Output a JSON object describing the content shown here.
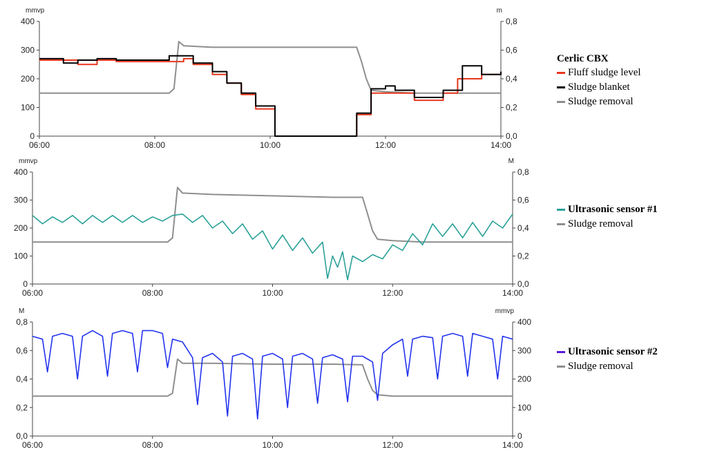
{
  "colors": {
    "fluff": "#e8361c",
    "blanket": "#000000",
    "removal": "#8e8e8e",
    "us1": "#2aa198",
    "us2": "#2233ee",
    "us2_legend": "#5a18d8"
  },
  "chart_data": [
    {
      "type": "line",
      "title": "",
      "xlim": [
        "06:00",
        "14:00"
      ],
      "x_ticks": [
        "06:00",
        "08:00",
        "10:00",
        "12:00",
        "14:00"
      ],
      "left_axis": {
        "unit": "mmvp",
        "lim": [
          0,
          400
        ],
        "ticks": [
          "0",
          "100",
          "200",
          "300",
          "400"
        ]
      },
      "right_axis": {
        "unit": "m",
        "lim": [
          0,
          0.8
        ],
        "ticks": [
          "0,0",
          "0,2",
          "0,4",
          "0,6",
          "0,8"
        ]
      },
      "legend": {
        "title": "Cerlic CBX",
        "items": [
          "Fluff sludge level",
          "Sludge blanket",
          "Sludge removal"
        ]
      },
      "series": [
        {
          "name": "Fluff sludge level",
          "axis": "left",
          "color_key": "fluff",
          "x": [
            "06:00",
            "06:15",
            "06:40",
            "07:00",
            "07:20",
            "07:40",
            "08:10",
            "08:30",
            "08:40",
            "09:00",
            "09:15",
            "09:30",
            "09:45",
            "10:00",
            "10:05",
            "10:30",
            "11:00",
            "11:25",
            "11:30",
            "11:45",
            "12:00",
            "12:30",
            "12:50",
            "13:00",
            "13:10",
            "13:15",
            "13:20",
            "13:40",
            "14:00"
          ],
          "y": [
            265,
            265,
            250,
            265,
            260,
            260,
            260,
            270,
            250,
            215,
            185,
            145,
            95,
            95,
            0,
            0,
            0,
            0,
            75,
            150,
            150,
            125,
            125,
            150,
            150,
            200,
            200,
            215,
            220
          ]
        },
        {
          "name": "Sludge blanket",
          "axis": "left",
          "color_key": "blanket",
          "x": [
            "06:00",
            "06:25",
            "06:40",
            "07:00",
            "07:20",
            "07:40",
            "08:15",
            "08:30",
            "08:40",
            "09:00",
            "09:15",
            "09:30",
            "09:45",
            "10:00",
            "10:05",
            "10:30",
            "11:00",
            "11:25",
            "11:30",
            "11:45",
            "12:00",
            "12:10",
            "12:30",
            "12:50",
            "13:00",
            "13:10",
            "13:20",
            "13:40",
            "14:00"
          ],
          "y": [
            270,
            255,
            265,
            270,
            265,
            265,
            280,
            280,
            255,
            225,
            185,
            150,
            105,
            105,
            0,
            0,
            0,
            0,
            80,
            165,
            175,
            160,
            135,
            135,
            160,
            160,
            245,
            215,
            225
          ]
        },
        {
          "name": "Sludge removal",
          "axis": "right",
          "color_key": "removal",
          "x": [
            "06:00",
            "08:15",
            "08:20",
            "08:25",
            "08:30",
            "09:00",
            "10:00",
            "11:00",
            "11:30",
            "11:35",
            "11:40",
            "11:45",
            "12:00",
            "12:30",
            "13:00",
            "14:00"
          ],
          "y": [
            0.3,
            0.3,
            0.33,
            0.66,
            0.63,
            0.62,
            0.62,
            0.62,
            0.62,
            0.52,
            0.4,
            0.32,
            0.31,
            0.3,
            0.3,
            0.3
          ]
        }
      ]
    },
    {
      "type": "line",
      "title": "",
      "xlim": [
        "06:00",
        "14:00"
      ],
      "x_ticks": [
        "06:00",
        "08:00",
        "10:00",
        "12:00",
        "14:00"
      ],
      "left_axis": {
        "unit": "mmvp",
        "lim": [
          0,
          400
        ],
        "ticks": [
          "0",
          "100",
          "200",
          "300",
          "400"
        ]
      },
      "right_axis": {
        "unit": "M",
        "lim": [
          0,
          0.8
        ],
        "ticks": [
          "0,0",
          "0,2",
          "0,4",
          "0,6",
          "0,8"
        ]
      },
      "legend": {
        "items": [
          "Ultrasonic sensor #1",
          "Sludge removal"
        ]
      },
      "series": [
        {
          "name": "Ultrasonic sensor #1",
          "axis": "left",
          "color_key": "us1",
          "x": [
            "06:00",
            "06:10",
            "06:20",
            "06:30",
            "06:40",
            "06:50",
            "07:00",
            "07:10",
            "07:20",
            "07:30",
            "07:40",
            "07:50",
            "08:00",
            "08:10",
            "08:20",
            "08:30",
            "08:40",
            "08:50",
            "09:00",
            "09:10",
            "09:20",
            "09:30",
            "09:40",
            "09:50",
            "10:00",
            "10:10",
            "10:20",
            "10:30",
            "10:40",
            "10:50",
            "10:55",
            "11:00",
            "11:05",
            "11:10",
            "11:15",
            "11:20",
            "11:30",
            "11:40",
            "11:50",
            "12:00",
            "12:10",
            "12:20",
            "12:30",
            "12:40",
            "12:50",
            "13:00",
            "13:10",
            "13:20",
            "13:30",
            "13:40",
            "13:50",
            "14:00"
          ],
          "y": [
            245,
            215,
            240,
            220,
            245,
            215,
            245,
            220,
            245,
            220,
            245,
            220,
            240,
            225,
            245,
            250,
            220,
            245,
            200,
            225,
            180,
            215,
            160,
            190,
            125,
            175,
            120,
            165,
            110,
            150,
            20,
            100,
            60,
            115,
            15,
            100,
            80,
            105,
            90,
            140,
            120,
            180,
            140,
            215,
            170,
            215,
            165,
            220,
            170,
            225,
            200,
            250
          ]
        },
        {
          "name": "Sludge removal",
          "axis": "right",
          "color_key": "removal",
          "x": [
            "06:00",
            "08:15",
            "08:20",
            "08:25",
            "08:30",
            "09:00",
            "10:00",
            "11:00",
            "11:30",
            "11:35",
            "11:40",
            "11:45",
            "12:00",
            "12:30",
            "13:00",
            "14:00"
          ],
          "y": [
            0.3,
            0.3,
            0.33,
            0.69,
            0.65,
            0.64,
            0.63,
            0.62,
            0.62,
            0.5,
            0.38,
            0.32,
            0.31,
            0.3,
            0.3,
            0.3
          ]
        }
      ]
    },
    {
      "type": "line",
      "title": "",
      "xlim": [
        "06:00",
        "14:00"
      ],
      "x_ticks": [
        "06:00",
        "08:00",
        "10:00",
        "12:00",
        "14:00"
      ],
      "left_axis": {
        "unit": "M",
        "lim": [
          0,
          0.8
        ],
        "ticks": [
          "0,0",
          "0,2",
          "0,4",
          "0,6",
          "0,8"
        ]
      },
      "right_axis": {
        "unit": "mmvp",
        "lim": [
          0,
          400
        ],
        "ticks": [
          "0",
          "100",
          "200",
          "300",
          "400"
        ]
      },
      "legend": {
        "items": [
          "Ultrasonic sensor #2",
          "Sludge removal"
        ]
      },
      "series": [
        {
          "name": "Ultrasonic sensor #2",
          "axis": "left",
          "color_key": "us2",
          "x": [
            "06:00",
            "06:10",
            "06:15",
            "06:20",
            "06:30",
            "06:40",
            "06:45",
            "06:50",
            "07:00",
            "07:10",
            "07:15",
            "07:20",
            "07:30",
            "07:40",
            "07:45",
            "07:50",
            "08:00",
            "08:10",
            "08:15",
            "08:20",
            "08:30",
            "08:40",
            "08:45",
            "08:50",
            "09:00",
            "09:10",
            "09:15",
            "09:20",
            "09:30",
            "09:40",
            "09:45",
            "09:50",
            "10:00",
            "10:10",
            "10:15",
            "10:20",
            "10:30",
            "10:40",
            "10:45",
            "10:50",
            "11:00",
            "11:10",
            "11:15",
            "11:20",
            "11:30",
            "11:40",
            "11:45",
            "11:50",
            "12:00",
            "12:10",
            "12:15",
            "12:20",
            "12:30",
            "12:40",
            "12:45",
            "12:50",
            "13:00",
            "13:10",
            "13:15",
            "13:20",
            "13:30",
            "13:40",
            "13:45",
            "13:50",
            "14:00"
          ],
          "y": [
            0.7,
            0.68,
            0.45,
            0.7,
            0.72,
            0.7,
            0.4,
            0.7,
            0.74,
            0.7,
            0.42,
            0.72,
            0.74,
            0.72,
            0.45,
            0.74,
            0.74,
            0.72,
            0.48,
            0.68,
            0.66,
            0.55,
            0.22,
            0.55,
            0.58,
            0.52,
            0.14,
            0.56,
            0.58,
            0.54,
            0.12,
            0.56,
            0.58,
            0.54,
            0.2,
            0.56,
            0.58,
            0.54,
            0.23,
            0.55,
            0.57,
            0.54,
            0.24,
            0.56,
            0.56,
            0.52,
            0.25,
            0.58,
            0.64,
            0.68,
            0.42,
            0.68,
            0.7,
            0.69,
            0.4,
            0.7,
            0.72,
            0.7,
            0.42,
            0.72,
            0.7,
            0.68,
            0.4,
            0.7,
            0.68
          ]
        },
        {
          "name": "Sludge removal",
          "axis": "right",
          "color_key": "removal",
          "x": [
            "06:00",
            "08:15",
            "08:20",
            "08:25",
            "08:30",
            "09:00",
            "10:00",
            "11:00",
            "11:30",
            "11:35",
            "11:40",
            "11:45",
            "12:00",
            "12:30",
            "13:00",
            "14:00"
          ],
          "y": [
            140,
            140,
            150,
            270,
            255,
            255,
            252,
            252,
            250,
            200,
            160,
            145,
            140,
            140,
            140,
            140
          ]
        }
      ]
    }
  ]
}
